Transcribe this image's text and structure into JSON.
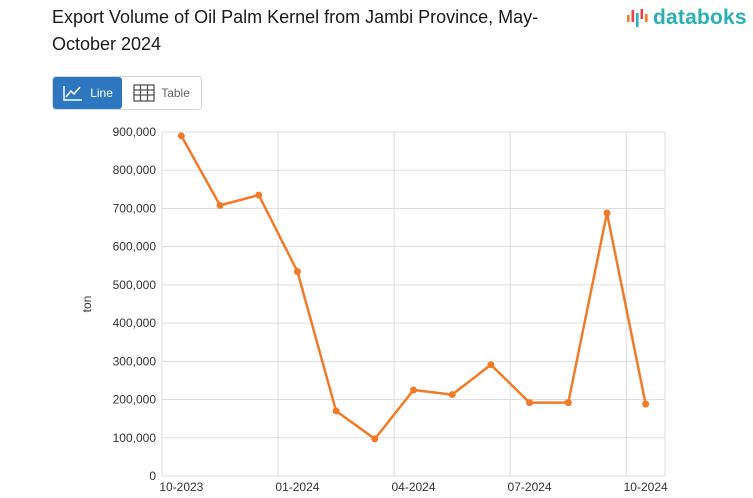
{
  "header": {
    "title": "Export Volume of Oil Palm Kernel from Jambi Province, May-October 2024",
    "logo": "databoks"
  },
  "view_toggle": {
    "line_label": "Line",
    "table_label": "Table",
    "selected": "Line"
  },
  "colors": {
    "line": "#f07b29",
    "accent": "#2d77c0",
    "logo": "#2bb0b5",
    "grid": "#dddddd"
  },
  "chart_data": {
    "type": "line",
    "ylabel": "ton",
    "xlabel": "",
    "ylim": [
      0,
      900000
    ],
    "yticks": [
      "0",
      "100,000",
      "200,000",
      "300,000",
      "400,000",
      "500,000",
      "600,000",
      "700,000",
      "800,000",
      "900,000"
    ],
    "xticks": [
      "10-2023",
      "01-2024",
      "04-2024",
      "07-2024",
      "10-2024"
    ],
    "x": [
      "10-2023",
      "11-2023",
      "12-2023",
      "01-2024",
      "02-2024",
      "03-2024",
      "04-2024",
      "05-2024",
      "06-2024",
      "07-2024",
      "08-2024",
      "09-2024",
      "10-2024"
    ],
    "series": [
      {
        "values": [
          890000,
          708000,
          735000,
          535000,
          170000,
          97000,
          225000,
          213000,
          291000,
          192000,
          192000,
          688000,
          188000
        ]
      }
    ],
    "grid": true,
    "legend": "none"
  }
}
